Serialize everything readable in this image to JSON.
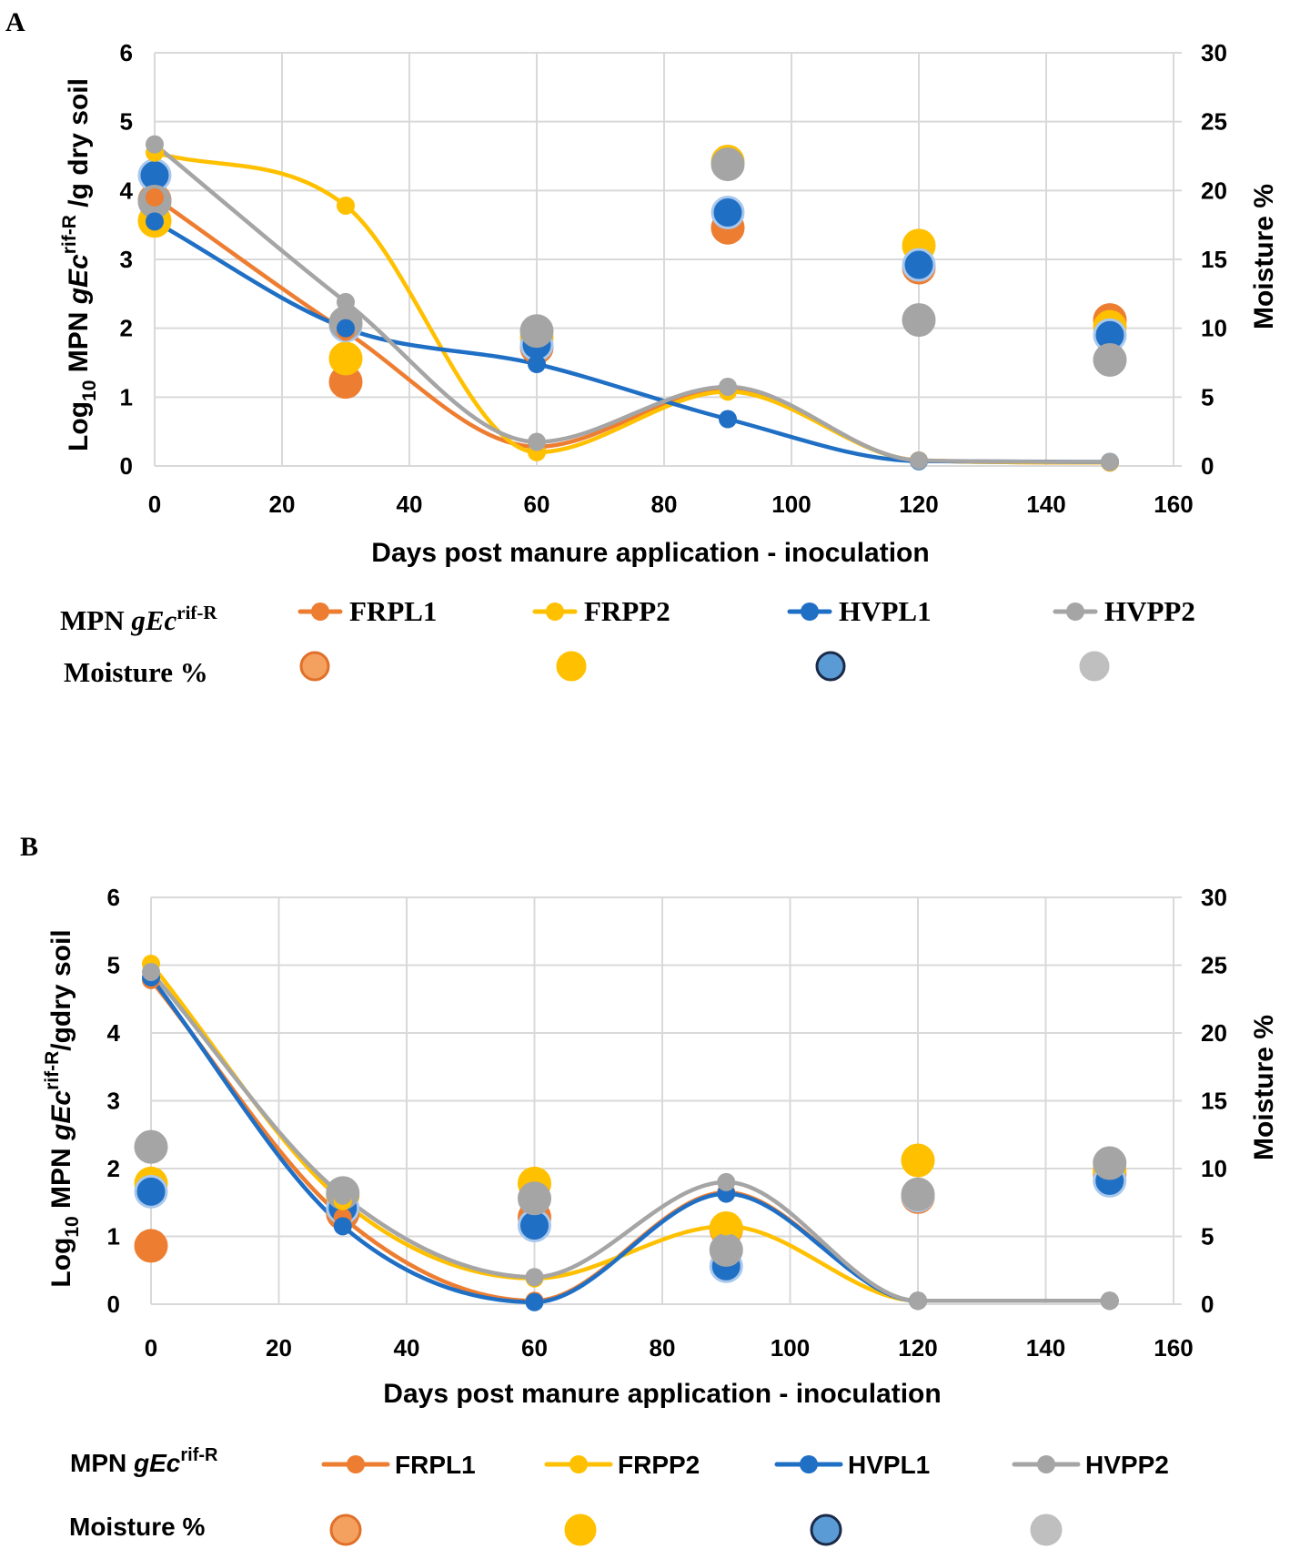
{
  "chart_data": [
    {
      "panel": "A",
      "type": "line",
      "xlabel": "Days post manure application - inoculation",
      "ylabel": {
        "pre": "Log",
        "sub": "10",
        "mid": " MPN ",
        "em": "gEc",
        "sup": "rif-R",
        "post": " /g dry soil"
      },
      "y2label": "Moisture %",
      "xlim": [
        0,
        160
      ],
      "xticks": [
        0,
        20,
        40,
        60,
        80,
        100,
        120,
        140,
        160
      ],
      "ylim": [
        0,
        6
      ],
      "yticks": [
        0,
        1,
        2,
        3,
        4,
        5,
        6
      ],
      "y2lim": [
        0,
        30
      ],
      "y2ticks": [
        0,
        5,
        10,
        15,
        20,
        25,
        30
      ],
      "x": [
        0,
        30,
        60,
        90,
        120,
        150
      ],
      "series": [
        {
          "name": "FRPL1",
          "color": "#ED7D31",
          "values": [
            3.9,
            1.95,
            0.28,
            1.12,
            0.08,
            0.05
          ]
        },
        {
          "name": "FRPP2",
          "color": "#FFC000",
          "values": [
            4.55,
            3.78,
            0.2,
            1.08,
            0.08,
            0.05
          ]
        },
        {
          "name": "HVPL1",
          "color": "#1F6FC5",
          "values": [
            3.55,
            2.0,
            1.48,
            0.68,
            0.07,
            0.06
          ]
        },
        {
          "name": "HVPP2",
          "color": "#A5A5A5",
          "values": [
            4.67,
            2.38,
            0.35,
            1.15,
            0.08,
            0.06
          ]
        }
      ],
      "moisture": [
        {
          "name": "FRPL1",
          "fill": "#ED7D31",
          "stroke": "#ED7D31",
          "values": [
            19.3,
            6.1,
            8.6,
            17.3,
            14.4,
            10.6
          ]
        },
        {
          "name": "FRPP2",
          "fill": "#FFC000",
          "stroke": "#FFC000",
          "values": [
            17.8,
            7.8,
            9.3,
            22.1,
            16.0,
            10.1
          ]
        },
        {
          "name": "HVPL1",
          "fill": "#1F6FC5",
          "stroke": "#A9C8EC",
          "values": [
            21.1,
            10.2,
            8.8,
            18.4,
            14.6,
            9.5
          ]
        },
        {
          "name": "HVPP2",
          "fill": "#A5A5A5",
          "stroke": "#A5A5A5",
          "values": [
            19.2,
            10.4,
            9.8,
            21.9,
            10.6,
            7.7
          ]
        }
      ],
      "legend": {
        "row1": {
          "pre": "MPN ",
          "em": "gEc",
          "sup": "rif-R"
        },
        "row2": "Moisture %",
        "legend_moisture": [
          {
            "fill": "#F4A15F",
            "stroke": "#E0702A"
          },
          {
            "fill": "#FFC000",
            "stroke": "#FFC000"
          },
          {
            "fill": "#5B9BD5",
            "stroke": "#1A2A48"
          },
          {
            "fill": "#BFBFBF",
            "stroke": "#BFBFBF"
          }
        ]
      }
    },
    {
      "panel": "B",
      "type": "line",
      "xlabel": "Days post manure application - inoculation",
      "ylabel": {
        "pre": "Log",
        "sub": "10",
        "mid": " MPN ",
        "em": "gEc",
        "sup": "rif-R",
        "post": "/gdry soil"
      },
      "y2label": "Moisture %",
      "xlim": [
        0,
        160
      ],
      "xticks": [
        0,
        20,
        40,
        60,
        80,
        100,
        120,
        140,
        160
      ],
      "ylim": [
        0,
        6
      ],
      "yticks": [
        0,
        1,
        2,
        3,
        4,
        5,
        6
      ],
      "y2lim": [
        0,
        30
      ],
      "y2ticks": [
        0,
        5,
        10,
        15,
        20,
        25,
        30
      ],
      "x": [
        0,
        30,
        60,
        90,
        120,
        150
      ],
      "series": [
        {
          "name": "FRPL1",
          "color": "#ED7D31",
          "values": [
            4.78,
            1.28,
            0.05,
            1.65,
            0.05,
            0.05
          ]
        },
        {
          "name": "FRPP2",
          "color": "#FFC000",
          "values": [
            5.02,
            1.52,
            0.38,
            1.15,
            0.05,
            0.05
          ]
        },
        {
          "name": "HVPL1",
          "color": "#1F6FC5",
          "values": [
            4.82,
            1.15,
            0.03,
            1.63,
            0.05,
            0.05
          ]
        },
        {
          "name": "HVPP2",
          "color": "#A5A5A5",
          "values": [
            4.9,
            1.6,
            0.4,
            1.8,
            0.05,
            0.05
          ]
        }
      ],
      "moisture": [
        {
          "name": "FRPL1",
          "fill": "#ED7D31",
          "stroke": "#ED7D31",
          "values": [
            4.3,
            6.7,
            6.4,
            5.5,
            7.9,
            9.6
          ]
        },
        {
          "name": "FRPP2",
          "fill": "#FFC000",
          "stroke": "#FFC000",
          "values": [
            8.9,
            8.0,
            8.9,
            5.6,
            10.6,
            9.9
          ]
        },
        {
          "name": "HVPL1",
          "fill": "#1F6FC5",
          "stroke": "#A9C8EC",
          "values": [
            8.3,
            7.1,
            5.8,
            2.8,
            8.0,
            9.1
          ]
        },
        {
          "name": "HVPP2",
          "fill": "#A5A5A5",
          "stroke": "#A5A5A5",
          "values": [
            11.6,
            8.2,
            7.8,
            4.0,
            8.1,
            10.4
          ]
        }
      ],
      "legend": {
        "row1": {
          "pre": "MPN ",
          "em": "gEc",
          "sup": "rif-R"
        },
        "row2": "Moisture %",
        "legend_moisture": [
          {
            "fill": "#F4A15F",
            "stroke": "#E0702A"
          },
          {
            "fill": "#FFC000",
            "stroke": "#FFC000"
          },
          {
            "fill": "#5B9BD5",
            "stroke": "#1A2A48"
          },
          {
            "fill": "#BFBFBF",
            "stroke": "#BFBFBF"
          }
        ]
      }
    }
  ]
}
